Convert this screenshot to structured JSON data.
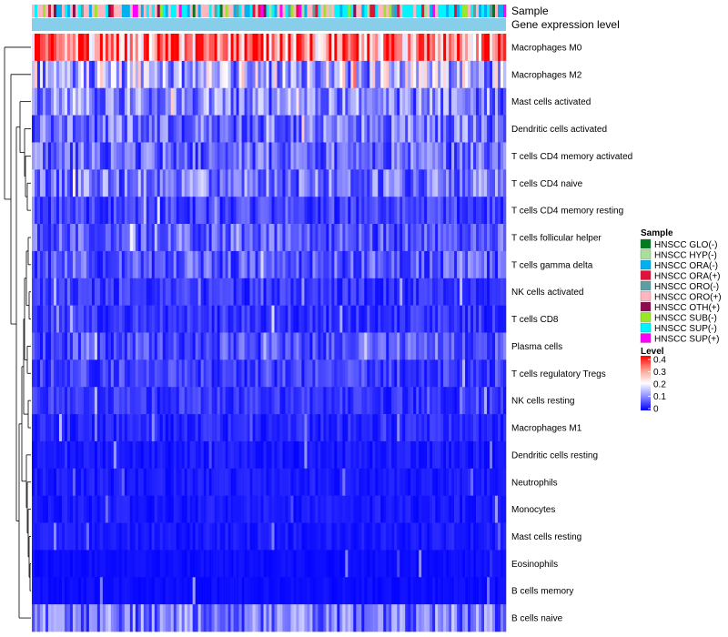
{
  "chart_data": {
    "type": "heatmap",
    "title": "",
    "annotation_labels": [
      "Sample",
      "Gene expression level"
    ],
    "rows": [
      {
        "label": "Macrophages M0",
        "level": 0.3
      },
      {
        "label": "Macrophages M2",
        "level": 0.14
      },
      {
        "label": "Mast cells activated",
        "level": 0.1
      },
      {
        "label": "Dendritic cells activated",
        "level": 0.09
      },
      {
        "label": "T cells CD4 memory activated",
        "level": 0.08
      },
      {
        "label": "T cells CD4 naive",
        "level": 0.09
      },
      {
        "label": "T cells CD4 memory resting",
        "level": 0.05
      },
      {
        "label": "T cells follicular helper",
        "level": 0.07
      },
      {
        "label": "T cells gamma delta",
        "level": 0.07
      },
      {
        "label": "NK cells activated",
        "level": 0.04
      },
      {
        "label": "T cells CD8",
        "level": 0.04
      },
      {
        "label": "Plasma cells",
        "level": 0.06
      },
      {
        "label": "T cells regulatory  Tregs",
        "level": 0.05
      },
      {
        "label": "NK cells resting",
        "level": 0.04
      },
      {
        "label": "Macrophages M1",
        "level": 0.03
      },
      {
        "label": "Dendritic cells resting",
        "level": 0.02
      },
      {
        "label": "Neutrophils",
        "level": 0.02
      },
      {
        "label": "Monocytes",
        "level": 0.02
      },
      {
        "label": "Mast cells resting",
        "level": 0.02
      },
      {
        "label": "Eosinophils",
        "level": 0.01
      },
      {
        "label": "B cells memory",
        "level": 0.01
      },
      {
        "label": "B cells naive",
        "level": 0.09
      }
    ],
    "n_samples": 174,
    "sample_legend": {
      "title": "Sample",
      "entries": [
        {
          "label": "HNSCC GLO(-)",
          "color": "#007A1F"
        },
        {
          "label": "HNSCC HYP(-)",
          "color": "#A7DF9B"
        },
        {
          "label": "HNSCC ORA(-)",
          "color": "#00B0F0"
        },
        {
          "label": "HNSCC ORA(+)",
          "color": "#DC143C"
        },
        {
          "label": "HNSCC ORO(-)",
          "color": "#5F9EA0"
        },
        {
          "label": "HNSCC ORO(+)",
          "color": "#FFB6C1"
        },
        {
          "label": "HNSCC OTH(+)",
          "color": "#8B0A50"
        },
        {
          "label": "HNSCC SUB(-)",
          "color": "#9AE629"
        },
        {
          "label": "HNSCC SUP(-)",
          "color": "#00F5FF"
        },
        {
          "label": "HNSCC SUP(+)",
          "color": "#FF00FF"
        }
      ]
    },
    "level_legend": {
      "title": "Level",
      "ticks": [
        "0.4",
        "0.3",
        "0.2",
        "0.1",
        "0"
      ],
      "range": [
        0,
        0.4
      ],
      "colors": [
        "#0000FF",
        "#FFFFFF",
        "#FF0000"
      ]
    },
    "gene_expression_color": "#87CEEB"
  }
}
